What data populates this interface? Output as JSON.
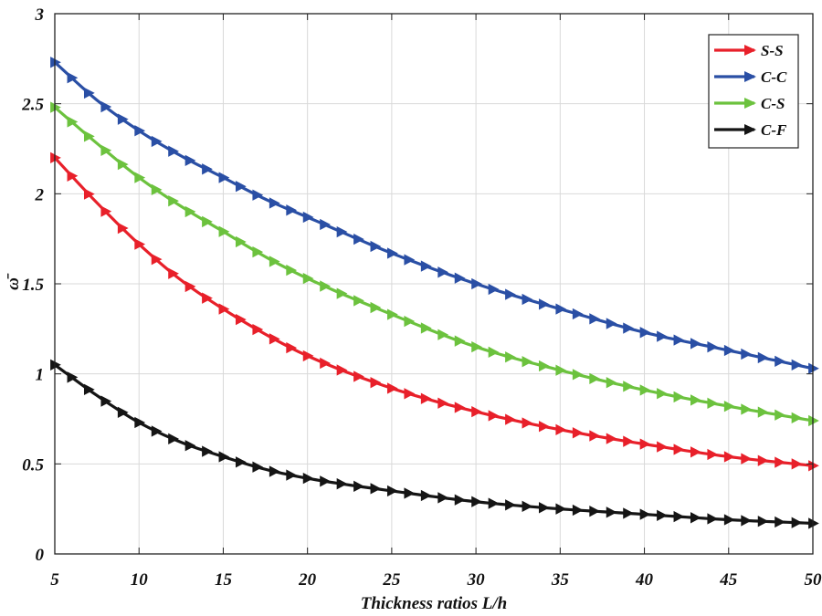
{
  "chart_data": {
    "type": "line",
    "title": "",
    "xlabel": "Thickness ratios L/h",
    "ylabel": "ω̄",
    "xlim": [
      5,
      50
    ],
    "ylim": [
      0,
      3
    ],
    "xticks": [
      5,
      10,
      15,
      20,
      25,
      30,
      35,
      40,
      45,
      50
    ],
    "yticks": [
      0,
      0.5,
      1,
      1.5,
      2,
      2.5,
      3
    ],
    "xtick_labels": [
      "5",
      "10",
      "15",
      "20",
      "25",
      "30",
      "35",
      "40",
      "45",
      "50"
    ],
    "ytick_labels": [
      "0",
      "0.5",
      "1",
      "1.5",
      "2",
      "2.5",
      "3"
    ],
    "grid": true,
    "legend_position": "top-right",
    "marker": "right-pointing triangle",
    "x": [
      5,
      7.5,
      10,
      12.5,
      15,
      17.5,
      20,
      25,
      30,
      35,
      40,
      45,
      50
    ],
    "series": [
      {
        "name": "S-S",
        "color": "#e8202a",
        "values": [
          2.2,
          1.95,
          1.72,
          1.52,
          1.36,
          1.22,
          1.1,
          0.92,
          0.79,
          0.69,
          0.61,
          0.54,
          0.49
        ]
      },
      {
        "name": "C-C",
        "color": "#2a4fa5",
        "values": [
          2.73,
          2.52,
          2.35,
          2.21,
          2.09,
          1.97,
          1.87,
          1.67,
          1.5,
          1.36,
          1.23,
          1.13,
          1.03
        ]
      },
      {
        "name": "C-S",
        "color": "#6cc23e",
        "values": [
          2.48,
          2.28,
          2.09,
          1.93,
          1.79,
          1.65,
          1.53,
          1.33,
          1.15,
          1.02,
          0.91,
          0.82,
          0.74
        ]
      },
      {
        "name": "C-F",
        "color": "#151515",
        "values": [
          1.05,
          0.88,
          0.73,
          0.62,
          0.54,
          0.47,
          0.42,
          0.35,
          0.29,
          0.25,
          0.22,
          0.19,
          0.17
        ]
      }
    ]
  }
}
